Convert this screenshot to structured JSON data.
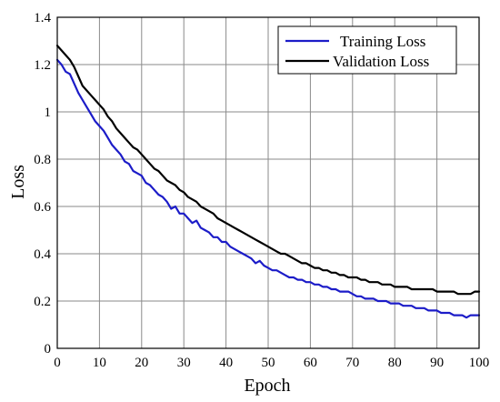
{
  "chart_data": {
    "type": "line",
    "title": "",
    "xlabel": "Epoch",
    "ylabel": "Loss",
    "xlim": [
      0,
      100
    ],
    "ylim": [
      0,
      1.4
    ],
    "xticks": [
      0,
      10,
      20,
      30,
      40,
      50,
      60,
      70,
      80,
      90,
      100
    ],
    "yticks": [
      0,
      0.2,
      0.4,
      0.6,
      0.8,
      1,
      1.2,
      1.4
    ],
    "xtick_labels": [
      "0",
      "10",
      "20",
      "30",
      "40",
      "50",
      "60",
      "70",
      "80",
      "90",
      "100"
    ],
    "ytick_labels": [
      "0",
      "0.2",
      "0.4",
      "0.6",
      "0.8",
      "1",
      "1.2",
      "1.4"
    ],
    "grid": true,
    "legend_position": "top-right",
    "series": [
      {
        "name": "Training Loss",
        "color": "#1c1cc8",
        "x": [
          0,
          1,
          2,
          3,
          4,
          5,
          6,
          7,
          8,
          9,
          10,
          11,
          12,
          13,
          14,
          15,
          16,
          17,
          18,
          19,
          20,
          21,
          22,
          23,
          24,
          25,
          26,
          27,
          28,
          29,
          30,
          31,
          32,
          33,
          34,
          35,
          36,
          37,
          38,
          39,
          40,
          41,
          42,
          43,
          44,
          45,
          46,
          47,
          48,
          49,
          50,
          51,
          52,
          53,
          54,
          55,
          56,
          57,
          58,
          59,
          60,
          61,
          62,
          63,
          64,
          65,
          66,
          67,
          68,
          69,
          70,
          71,
          72,
          73,
          74,
          75,
          76,
          77,
          78,
          79,
          80,
          81,
          82,
          83,
          84,
          85,
          86,
          87,
          88,
          89,
          90,
          91,
          92,
          93,
          94,
          95,
          96,
          97,
          98,
          99,
          100
        ],
        "values": [
          1.22,
          1.2,
          1.17,
          1.16,
          1.12,
          1.08,
          1.05,
          1.02,
          0.99,
          0.96,
          0.94,
          0.92,
          0.89,
          0.86,
          0.84,
          0.82,
          0.79,
          0.78,
          0.75,
          0.74,
          0.73,
          0.7,
          0.69,
          0.67,
          0.65,
          0.64,
          0.62,
          0.59,
          0.6,
          0.57,
          0.57,
          0.55,
          0.53,
          0.54,
          0.51,
          0.5,
          0.49,
          0.47,
          0.47,
          0.45,
          0.45,
          0.43,
          0.42,
          0.41,
          0.4,
          0.39,
          0.38,
          0.36,
          0.37,
          0.35,
          0.34,
          0.33,
          0.33,
          0.32,
          0.31,
          0.3,
          0.3,
          0.29,
          0.29,
          0.28,
          0.28,
          0.27,
          0.27,
          0.26,
          0.26,
          0.25,
          0.25,
          0.24,
          0.24,
          0.24,
          0.23,
          0.22,
          0.22,
          0.21,
          0.21,
          0.21,
          0.2,
          0.2,
          0.2,
          0.19,
          0.19,
          0.19,
          0.18,
          0.18,
          0.18,
          0.17,
          0.17,
          0.17,
          0.16,
          0.16,
          0.16,
          0.15,
          0.15,
          0.15,
          0.14,
          0.14,
          0.14,
          0.13,
          0.14,
          0.14,
          0.14
        ]
      },
      {
        "name": "Validation Loss",
        "color": "#000000",
        "x": [
          0,
          1,
          2,
          3,
          4,
          5,
          6,
          7,
          8,
          9,
          10,
          11,
          12,
          13,
          14,
          15,
          16,
          17,
          18,
          19,
          20,
          21,
          22,
          23,
          24,
          25,
          26,
          27,
          28,
          29,
          30,
          31,
          32,
          33,
          34,
          35,
          36,
          37,
          38,
          39,
          40,
          41,
          42,
          43,
          44,
          45,
          46,
          47,
          48,
          49,
          50,
          51,
          52,
          53,
          54,
          55,
          56,
          57,
          58,
          59,
          60,
          61,
          62,
          63,
          64,
          65,
          66,
          67,
          68,
          69,
          70,
          71,
          72,
          73,
          74,
          75,
          76,
          77,
          78,
          79,
          80,
          81,
          82,
          83,
          84,
          85,
          86,
          87,
          88,
          89,
          90,
          91,
          92,
          93,
          94,
          95,
          96,
          97,
          98,
          99,
          100
        ],
        "values": [
          1.28,
          1.26,
          1.24,
          1.22,
          1.19,
          1.15,
          1.11,
          1.09,
          1.07,
          1.05,
          1.03,
          1.01,
          0.98,
          0.96,
          0.93,
          0.91,
          0.89,
          0.87,
          0.85,
          0.84,
          0.82,
          0.8,
          0.78,
          0.76,
          0.75,
          0.73,
          0.71,
          0.7,
          0.69,
          0.67,
          0.66,
          0.64,
          0.63,
          0.62,
          0.6,
          0.59,
          0.58,
          0.57,
          0.55,
          0.54,
          0.53,
          0.52,
          0.51,
          0.5,
          0.49,
          0.48,
          0.47,
          0.46,
          0.45,
          0.44,
          0.43,
          0.42,
          0.41,
          0.4,
          0.4,
          0.39,
          0.38,
          0.37,
          0.36,
          0.36,
          0.35,
          0.34,
          0.34,
          0.33,
          0.33,
          0.32,
          0.32,
          0.31,
          0.31,
          0.3,
          0.3,
          0.3,
          0.29,
          0.29,
          0.28,
          0.28,
          0.28,
          0.27,
          0.27,
          0.27,
          0.26,
          0.26,
          0.26,
          0.26,
          0.25,
          0.25,
          0.25,
          0.25,
          0.25,
          0.25,
          0.24,
          0.24,
          0.24,
          0.24,
          0.24,
          0.23,
          0.23,
          0.23,
          0.23,
          0.24,
          0.24
        ]
      }
    ]
  }
}
